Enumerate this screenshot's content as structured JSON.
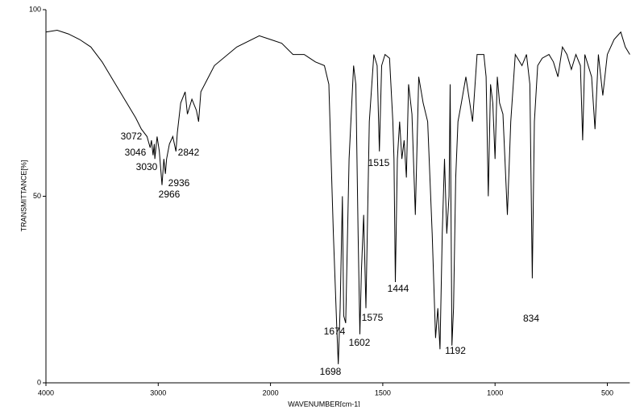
{
  "chart_data": {
    "type": "line",
    "xlabel": "WAVENUMBER[cm-1]",
    "ylabel": "TRANSMITTANCE[%]",
    "color": "#000000",
    "xlim": [
      4000,
      400
    ],
    "ylim": [
      0,
      100
    ],
    "xticks": [
      4000,
      3000,
      2000,
      1500,
      1000,
      500
    ],
    "yticks": [
      0,
      50,
      100
    ],
    "x": [
      4000,
      3900,
      3800,
      3700,
      3600,
      3500,
      3400,
      3300,
      3200,
      3150,
      3100,
      3072,
      3060,
      3046,
      3035,
      3030,
      3010,
      2990,
      2966,
      2950,
      2936,
      2925,
      2900,
      2870,
      2842,
      2830,
      2800,
      2760,
      2740,
      2700,
      2660,
      2640,
      2620,
      2500,
      2300,
      2100,
      2000,
      1950,
      1900,
      1850,
      1800,
      1760,
      1740,
      1720,
      1705,
      1698,
      1690,
      1680,
      1674,
      1665,
      1650,
      1630,
      1620,
      1610,
      1602,
      1595,
      1585,
      1575,
      1560,
      1540,
      1525,
      1515,
      1505,
      1490,
      1470,
      1455,
      1450,
      1444,
      1435,
      1425,
      1415,
      1405,
      1395,
      1385,
      1370,
      1355,
      1340,
      1320,
      1300,
      1280,
      1265,
      1255,
      1245,
      1235,
      1225,
      1215,
      1205,
      1200,
      1192,
      1185,
      1175,
      1165,
      1150,
      1130,
      1100,
      1080,
      1050,
      1040,
      1030,
      1020,
      1010,
      1000,
      990,
      980,
      965,
      945,
      930,
      910,
      880,
      860,
      845,
      834,
      825,
      810,
      790,
      760,
      740,
      720,
      700,
      680,
      660,
      640,
      620,
      610,
      600,
      570,
      555,
      540,
      520,
      500,
      470,
      440,
      420,
      400
    ],
    "values": [
      94,
      94.5,
      93.5,
      92,
      90,
      86,
      81,
      76,
      71,
      68,
      66,
      63,
      65,
      61,
      64,
      60,
      66,
      62,
      53,
      60,
      56,
      60,
      64,
      66,
      62,
      67,
      75,
      78,
      72,
      76,
      73,
      70,
      78,
      85,
      90,
      93,
      92,
      91,
      88,
      88,
      86,
      85,
      80,
      40,
      15,
      5,
      20,
      50,
      18,
      16,
      60,
      85,
      80,
      40,
      13,
      30,
      45,
      20,
      70,
      88,
      85,
      62,
      85,
      88,
      87,
      70,
      60,
      27,
      60,
      70,
      60,
      65,
      55,
      80,
      72,
      45,
      82,
      75,
      70,
      40,
      12,
      20,
      9,
      40,
      60,
      40,
      50,
      80,
      10,
      20,
      55,
      70,
      75,
      82,
      70,
      88,
      88,
      82,
      50,
      80,
      75,
      60,
      82,
      75,
      72,
      45,
      70,
      88,
      85,
      88,
      80,
      28,
      70,
      85,
      87,
      88,
      86,
      82,
      90,
      88,
      84,
      88,
      85,
      65,
      88,
      82,
      68,
      88,
      77,
      88,
      92,
      94,
      90,
      88
    ],
    "peak_labels": [
      3072,
      3046,
      3030,
      2966,
      2936,
      2842,
      1698,
      1674,
      1602,
      1575,
      1515,
      1444,
      1192,
      834
    ]
  }
}
